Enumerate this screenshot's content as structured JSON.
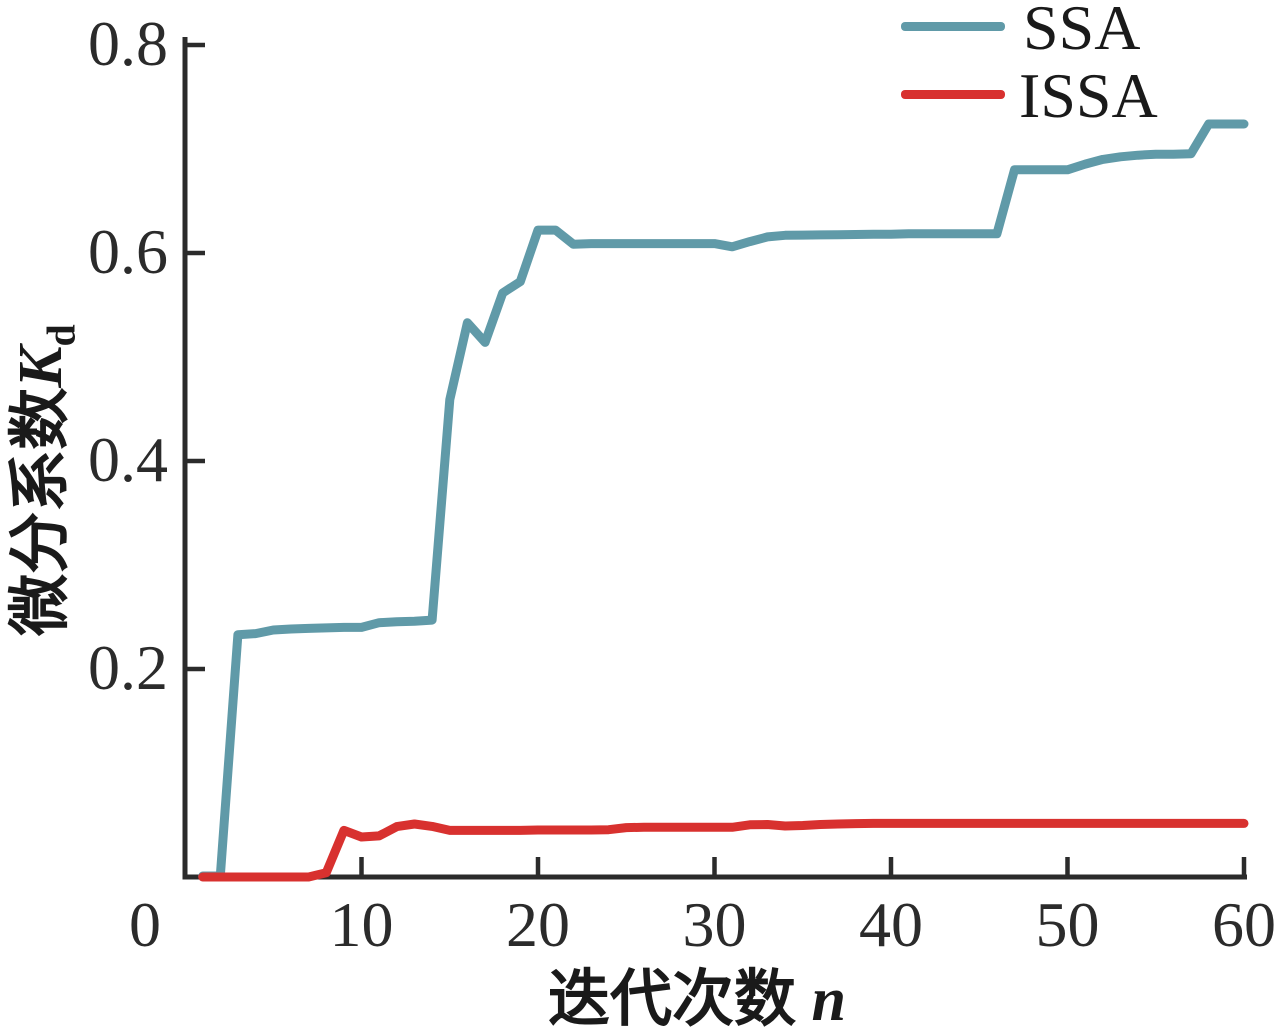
{
  "chart_data": {
    "type": "line",
    "title": "",
    "xlabel_cn": "迭代次数",
    "xlabel_var": "n",
    "ylabel_cn": "微分系数",
    "ylabel_var": "K",
    "ylabel_sub": "d",
    "xlim": [
      0,
      60
    ],
    "ylim": [
      0,
      0.8
    ],
    "xticks": [
      0,
      10,
      20,
      30,
      40,
      50,
      60
    ],
    "yticks": [
      0.2,
      0.4,
      0.6,
      0.8
    ],
    "grid": false,
    "legend_position": "top-right",
    "axis_color": "#2b2b2b",
    "background": "#ffffff",
    "x": [
      1,
      2,
      3,
      4,
      5,
      6,
      7,
      8,
      9,
      10,
      11,
      12,
      13,
      14,
      15,
      16,
      17,
      18,
      19,
      20,
      21,
      22,
      23,
      24,
      25,
      26,
      27,
      28,
      29,
      30,
      31,
      32,
      33,
      34,
      35,
      36,
      37,
      38,
      39,
      40,
      41,
      42,
      43,
      44,
      45,
      46,
      47,
      48,
      49,
      50,
      51,
      52,
      53,
      54,
      55,
      56,
      57,
      58,
      59,
      60
    ],
    "series": [
      {
        "name": "SSA",
        "color": "#609aa8",
        "values": [
          0.001,
          0.001,
          0.233,
          0.234,
          0.2375,
          0.2385,
          0.239,
          0.2395,
          0.24,
          0.24,
          0.2445,
          0.2455,
          0.246,
          0.247,
          0.459,
          0.533,
          0.514,
          0.5615,
          0.5725,
          0.622,
          0.622,
          0.6085,
          0.609,
          0.609,
          0.609,
          0.609,
          0.609,
          0.609,
          0.609,
          0.609,
          0.606,
          0.611,
          0.6155,
          0.617,
          0.6172,
          0.6174,
          0.6176,
          0.6178,
          0.618,
          0.618,
          0.6185,
          0.6185,
          0.6185,
          0.6185,
          0.6185,
          0.6185,
          0.68,
          0.68,
          0.68,
          0.68,
          0.6855,
          0.69,
          0.6925,
          0.694,
          0.695,
          0.695,
          0.6955,
          0.724,
          0.724,
          0.724
        ]
      },
      {
        "name": "ISSA",
        "color": "#d8312f",
        "values": [
          0,
          0,
          0,
          0,
          0,
          0,
          0,
          0.004,
          0.0448,
          0.0385,
          0.0395,
          0.0485,
          0.051,
          0.0487,
          0.0448,
          0.0448,
          0.0448,
          0.0448,
          0.0448,
          0.0452,
          0.0452,
          0.0452,
          0.0452,
          0.0455,
          0.0475,
          0.0478,
          0.0478,
          0.0478,
          0.0478,
          0.0478,
          0.0478,
          0.0502,
          0.0505,
          0.049,
          0.0495,
          0.0505,
          0.051,
          0.0513,
          0.0515,
          0.0515,
          0.0515,
          0.0515,
          0.0515,
          0.0515,
          0.0515,
          0.0515,
          0.0515,
          0.0515,
          0.0515,
          0.0515,
          0.0515,
          0.0515,
          0.0515,
          0.0515,
          0.0515,
          0.0515,
          0.0515,
          0.0515,
          0.0515,
          0.0515
        ]
      }
    ]
  }
}
